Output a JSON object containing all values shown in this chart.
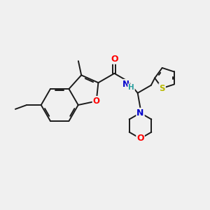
{
  "bg": "#f0f0f0",
  "bc": "#1a1a1a",
  "bw": 1.4,
  "dbo": 0.07,
  "colors": {
    "O": "#ff0000",
    "N": "#0000cc",
    "S": "#b8b800",
    "C": "#1a1a1a"
  },
  "fs": 7.5
}
